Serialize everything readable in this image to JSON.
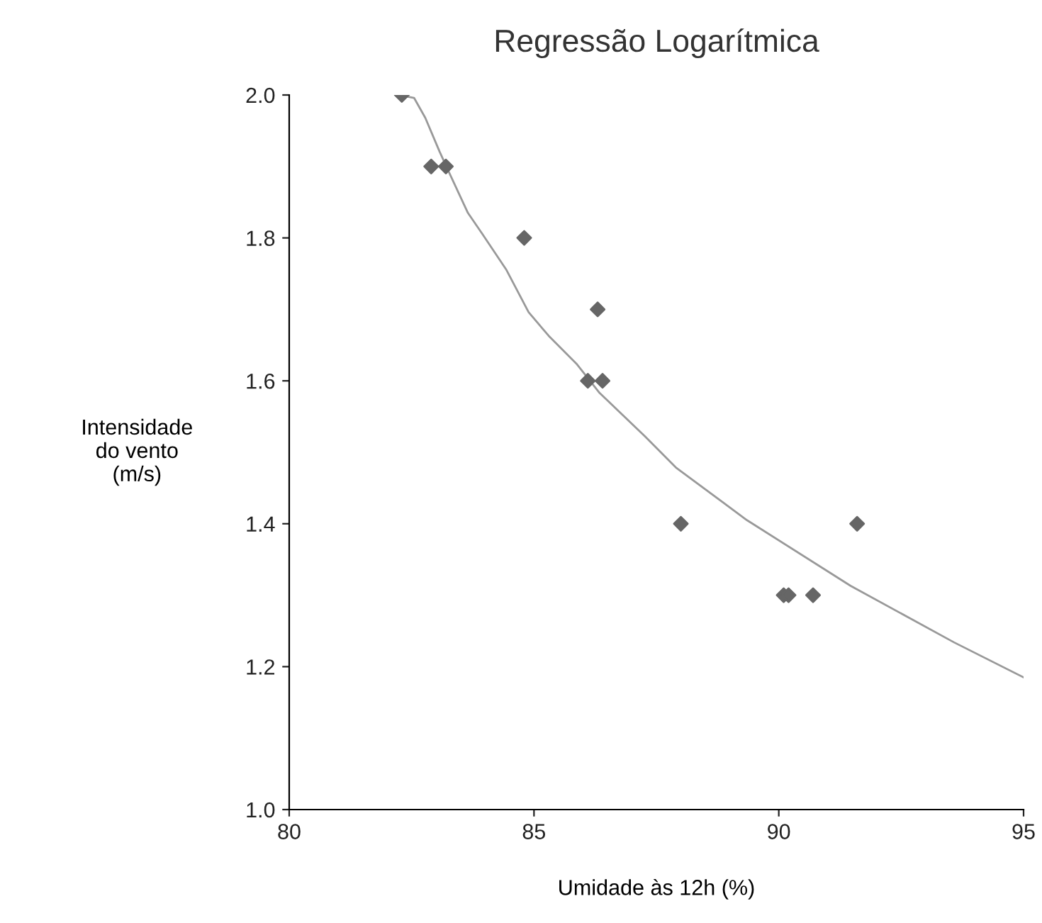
{
  "chart_data": {
    "type": "scatter",
    "title": "Regressão Logarítmica",
    "xlabel": "Umidade às 12h (%)",
    "ylabel": "Intensidade\ndo vento\n(m/s)",
    "xlim": [
      80,
      95
    ],
    "xticks": [
      80,
      85,
      90,
      95
    ],
    "ylim": [
      1.0,
      2.0
    ],
    "yticks": [
      {
        "value": 1.0,
        "label": "1.0"
      },
      {
        "value": 1.2,
        "label": "1.2"
      },
      {
        "value": 1.4,
        "label": "1.4"
      },
      {
        "value": 1.6,
        "label": "1.6"
      },
      {
        "value": 1.8,
        "label": "1.8"
      },
      {
        "value": 2.0,
        "label": "2.0"
      }
    ],
    "grid": false,
    "marker": "diamond",
    "series": [
      {
        "color": "#666666",
        "x": [
          82.3,
          82.9,
          83.2,
          84.8,
          86.3,
          86.1,
          86.4,
          88.0,
          90.1,
          90.2,
          90.7,
          91.6
        ],
        "values": [
          2.0,
          1.9,
          1.9,
          1.8,
          1.7,
          1.6,
          1.6,
          1.4,
          1.3,
          1.3,
          1.3,
          1.4
        ]
      },
      {
        "type": "line",
        "color": "#999999",
        "marker": "none",
        "line_style": "solid",
        "x": [
          82.23,
          82.55,
          82.78,
          83.07,
          83.27,
          83.65,
          83.94,
          84.43,
          84.89,
          85.3,
          85.88,
          86.34,
          87.27,
          87.91,
          89.35,
          91.47,
          93.58,
          95.0
        ],
        "values": [
          2.0,
          1.996,
          1.968,
          1.921,
          1.891,
          1.835,
          1.806,
          1.756,
          1.696,
          1.663,
          1.623,
          1.583,
          1.522,
          1.478,
          1.405,
          1.313,
          1.234,
          1.185
        ]
      }
    ]
  }
}
